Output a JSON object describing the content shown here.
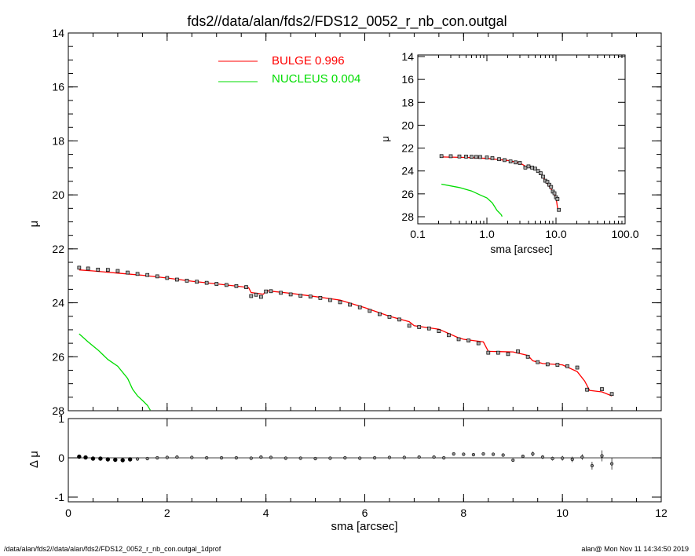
{
  "title": "fds2//data/alan/fds2/FDS12_0052_r_nb_con.outgal",
  "footer": {
    "left": "/data/alan/fds2//data/alan/fds2/FDS12_0052_r_nb_con.outgal_1dprof",
    "right": "alan@  Mon Nov 11 14:34:50 2019"
  },
  "colors": {
    "bulge": "#ff0000",
    "nucleus": "#00dd00",
    "data": "#000000"
  },
  "chart_data": [
    {
      "name": "main-profile",
      "type": "scatter",
      "xlabel": "",
      "ylabel": "μ",
      "xlim": [
        0,
        12
      ],
      "ylim": [
        28,
        14
      ],
      "x_ticks": [
        "0",
        "2",
        "4",
        "6",
        "8",
        "10",
        "12"
      ],
      "y_ticks": [
        "14",
        "16",
        "18",
        "20",
        "22",
        "24",
        "26",
        "28"
      ],
      "legend": [
        {
          "label": "BULGE  0.996",
          "color": "#ff0000"
        },
        {
          "label": "NUCLEUS  0.004",
          "color": "#00dd00"
        }
      ],
      "observed": {
        "x": [
          0.22,
          0.4,
          0.6,
          0.8,
          1.0,
          1.2,
          1.4,
          1.6,
          1.8,
          2.0,
          2.2,
          2.4,
          2.6,
          2.8,
          3.0,
          3.2,
          3.4,
          3.6,
          3.7,
          3.8,
          3.9,
          4.0,
          4.1,
          4.3,
          4.5,
          4.7,
          4.9,
          5.1,
          5.3,
          5.5,
          5.7,
          5.9,
          6.1,
          6.3,
          6.5,
          6.7,
          6.9,
          7.1,
          7.3,
          7.5,
          7.7,
          7.9,
          8.1,
          8.3,
          8.5,
          8.7,
          8.9,
          9.1,
          9.3,
          9.5,
          9.7,
          9.9,
          10.1,
          10.3,
          10.5,
          10.8,
          11.0
        ],
        "y": [
          22.7,
          22.73,
          22.77,
          22.78,
          22.82,
          22.88,
          22.93,
          22.97,
          23.02,
          23.08,
          23.14,
          23.18,
          23.22,
          23.26,
          23.3,
          23.34,
          23.38,
          23.42,
          23.75,
          23.7,
          23.78,
          23.58,
          23.57,
          23.63,
          23.69,
          23.74,
          23.77,
          23.82,
          23.9,
          23.98,
          24.07,
          24.17,
          24.3,
          24.42,
          24.52,
          24.62,
          24.85,
          24.9,
          24.95,
          25.05,
          25.2,
          25.35,
          25.4,
          25.5,
          25.85,
          25.85,
          25.9,
          25.8,
          26.0,
          26.2,
          26.28,
          26.3,
          26.35,
          26.4,
          27.22,
          27.2,
          27.38
        ]
      },
      "model_bulge": {
        "x": [
          0.22,
          0.5,
          1.0,
          1.5,
          2.0,
          2.5,
          3.0,
          3.5,
          3.65,
          3.7,
          3.95,
          4.0,
          4.1,
          4.5,
          5.0,
          5.5,
          6.0,
          6.5,
          6.9,
          7.0,
          7.5,
          7.9,
          8.0,
          8.4,
          8.5,
          9.0,
          9.3,
          9.4,
          9.6,
          10.0,
          10.3,
          10.45,
          10.55,
          10.8,
          11.0
        ],
        "y": [
          22.78,
          22.82,
          22.9,
          22.98,
          23.08,
          23.2,
          23.3,
          23.4,
          23.44,
          23.62,
          23.68,
          23.55,
          23.57,
          23.65,
          23.77,
          23.9,
          24.18,
          24.5,
          24.7,
          24.85,
          24.98,
          25.3,
          25.35,
          25.45,
          25.8,
          25.82,
          25.95,
          26.15,
          26.25,
          26.3,
          26.55,
          26.9,
          27.25,
          27.3,
          27.45
        ]
      },
      "model_nucleus": {
        "x": [
          0.22,
          0.4,
          0.6,
          0.8,
          1.0,
          1.2,
          1.3,
          1.4,
          1.5,
          1.6,
          1.66
        ],
        "y": [
          25.15,
          25.45,
          25.75,
          26.1,
          26.35,
          26.8,
          27.2,
          27.45,
          27.62,
          27.8,
          27.98
        ]
      }
    },
    {
      "name": "residuals",
      "type": "scatter",
      "xlabel": "sma [arcsec]",
      "ylabel": "Δ μ",
      "xlim": [
        0,
        12
      ],
      "ylim": [
        -1,
        1
      ],
      "x_ticks": [
        "0",
        "2",
        "4",
        "6",
        "8",
        "10",
        "12"
      ],
      "y_ticks": [
        "1",
        "0",
        "-1"
      ],
      "points": {
        "x": [
          0.22,
          0.35,
          0.5,
          0.65,
          0.8,
          0.95,
          1.1,
          1.25,
          1.4,
          1.6,
          1.8,
          2.0,
          2.2,
          2.5,
          2.8,
          3.1,
          3.4,
          3.7,
          3.9,
          4.1,
          4.4,
          4.7,
          5.0,
          5.3,
          5.6,
          5.9,
          6.2,
          6.5,
          6.8,
          7.1,
          7.4,
          7.6,
          7.8,
          8.0,
          8.2,
          8.4,
          8.6,
          8.8,
          9.0,
          9.2,
          9.4,
          9.6,
          9.8,
          10.0,
          10.2,
          10.4,
          10.6,
          10.8,
          11.0
        ],
        "y": [
          0.03,
          0.01,
          -0.02,
          -0.02,
          -0.04,
          -0.05,
          -0.06,
          -0.04,
          -0.03,
          -0.02,
          0.0,
          0.01,
          0.02,
          0.01,
          0.0,
          0.0,
          0.0,
          -0.01,
          0.02,
          0.01,
          -0.01,
          -0.01,
          -0.02,
          -0.01,
          0.0,
          -0.01,
          0.0,
          0.01,
          0.01,
          0.02,
          0.02,
          0.0,
          0.1,
          0.09,
          0.08,
          0.1,
          0.09,
          0.07,
          -0.06,
          0.04,
          0.1,
          0.02,
          -0.02,
          -0.01,
          -0.04,
          0.02,
          -0.2,
          0.05,
          -0.15
        ],
        "err": [
          0.0,
          0.0,
          0.0,
          0.0,
          0.0,
          0.0,
          0.0,
          0.0,
          0.0,
          0.0,
          0.0,
          0.0,
          0.0,
          0.0,
          0.0,
          0.0,
          0.0,
          0.0,
          0.0,
          0.0,
          0.0,
          0.0,
          0.0,
          0.0,
          0.0,
          0.0,
          0.0,
          0.0,
          0.0,
          0.0,
          0.0,
          0.0,
          0.0,
          0.0,
          0.0,
          0.0,
          0.0,
          0.03,
          0.04,
          0.04,
          0.06,
          0.05,
          0.05,
          0.06,
          0.07,
          0.07,
          0.1,
          0.14,
          0.15
        ]
      }
    },
    {
      "name": "inset-log-profile",
      "type": "scatter",
      "xlabel": "sma [arcsec]",
      "ylabel": "μ",
      "xscale": "log",
      "xlim": [
        0.1,
        100
      ],
      "ylim": [
        28,
        14
      ],
      "x_ticks": [
        "0.1",
        "1.0",
        "10.0",
        "100.0"
      ],
      "y_ticks": [
        "14",
        "16",
        "18",
        "20",
        "22",
        "24",
        "26",
        "28"
      ],
      "observed": {
        "x": [
          0.22,
          0.3,
          0.4,
          0.5,
          0.6,
          0.7,
          0.8,
          1.0,
          1.2,
          1.5,
          1.8,
          2.2,
          2.6,
          3.0,
          3.6,
          4.0,
          4.5,
          5.0,
          5.5,
          6.0,
          6.5,
          7.0,
          7.5,
          8.0,
          8.5,
          9.0,
          9.5,
          10.0,
          10.5,
          11.0
        ],
        "y": [
          22.7,
          22.71,
          22.73,
          22.74,
          22.76,
          22.77,
          22.78,
          22.82,
          22.88,
          22.97,
          23.05,
          23.17,
          23.25,
          23.3,
          23.7,
          23.6,
          23.7,
          23.8,
          24.0,
          24.2,
          24.5,
          24.85,
          24.95,
          25.2,
          25.4,
          25.8,
          25.95,
          26.3,
          26.45,
          27.4
        ]
      },
      "model_bulge": {
        "x": [
          0.22,
          0.5,
          1.0,
          2.0,
          3.0,
          3.7,
          4.0,
          5.0,
          6.0,
          7.0,
          8.0,
          9.0,
          10.0,
          10.5,
          11.0
        ],
        "y": [
          22.78,
          22.82,
          22.9,
          23.08,
          23.3,
          23.62,
          23.55,
          23.77,
          24.18,
          24.85,
          25.35,
          25.82,
          26.3,
          27.2,
          27.45
        ]
      },
      "model_nucleus": {
        "x": [
          0.22,
          0.4,
          0.6,
          0.8,
          1.0,
          1.2,
          1.4,
          1.6,
          1.66
        ],
        "y": [
          25.15,
          25.45,
          25.75,
          26.1,
          26.35,
          26.8,
          27.45,
          27.8,
          27.98
        ]
      }
    }
  ]
}
